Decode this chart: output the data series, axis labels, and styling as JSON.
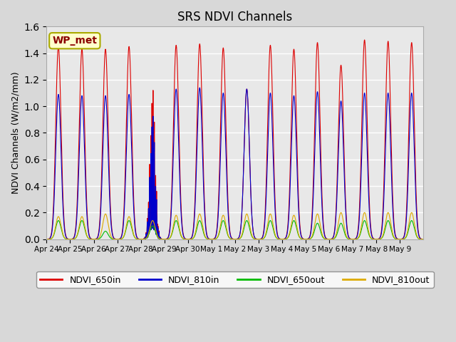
{
  "title": "SRS NDVI Channels",
  "ylabel": "NDVI Channels (W/m2/mm)",
  "annotation": "WP_met",
  "ylim": [
    0,
    1.6
  ],
  "background_color": "#e8e8e8",
  "legend_entries": [
    "NDVI_650in",
    "NDVI_810in",
    "NDVI_650out",
    "NDVI_810out"
  ],
  "legend_colors": [
    "#dd0000",
    "#0000cc",
    "#00bb00",
    "#ddaa00"
  ],
  "xtick_labels": [
    "Apr 24",
    "Apr 25",
    "Apr 26",
    "Apr 27",
    "Apr 28",
    "Apr 29",
    "Apr 30",
    "May 1",
    "May 2",
    "May 3",
    "May 4",
    "May 5",
    "May 6",
    "May 7",
    "May 8",
    "May 9"
  ],
  "num_days": 16,
  "points_per_day": 200,
  "peak_650in": [
    1.45,
    1.43,
    1.43,
    1.45,
    1.21,
    1.46,
    1.47,
    1.44,
    1.13,
    1.46,
    1.43,
    1.48,
    1.31,
    1.5,
    1.49,
    1.48
  ],
  "peak_810in": [
    1.09,
    1.08,
    1.08,
    1.09,
    1.0,
    1.13,
    1.14,
    1.1,
    1.13,
    1.1,
    1.08,
    1.11,
    1.04,
    1.1,
    1.1,
    1.1
  ],
  "peak_650out": [
    0.14,
    0.14,
    0.06,
    0.14,
    0.1,
    0.14,
    0.14,
    0.14,
    0.14,
    0.14,
    0.14,
    0.12,
    0.12,
    0.14,
    0.14,
    0.14
  ],
  "peak_810out": [
    0.17,
    0.17,
    0.19,
    0.17,
    0.14,
    0.18,
    0.19,
    0.18,
    0.19,
    0.19,
    0.18,
    0.19,
    0.2,
    0.2,
    0.2,
    0.2
  ],
  "cloudy_day": 4,
  "noisy_days": [
    4
  ]
}
